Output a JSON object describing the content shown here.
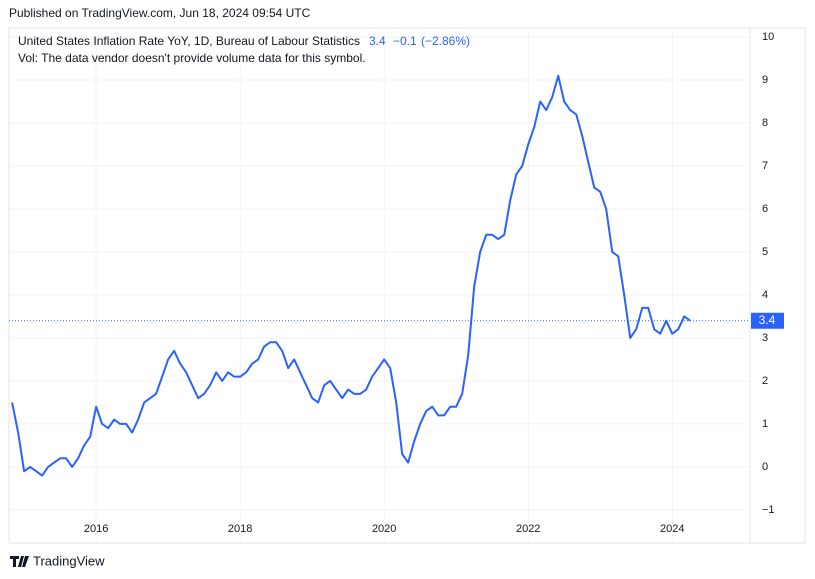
{
  "header": "Published on TradingView.com, Jun 18, 2024 09:54 UTC",
  "footer": "TradingView",
  "chart_data": {
    "type": "line",
    "title": "United States Inflation Rate YoY, 1D, Bureau of Labour Statistics",
    "legend_value": "3.4",
    "change": "−0.1",
    "change_pct": "(−2.86%)",
    "subtitle": "Vol: The data vendor doesn't provide volume data for this symbol.",
    "x": [
      2014.833,
      2014.917,
      2015.0,
      2015.083,
      2015.167,
      2015.25,
      2015.333,
      2015.417,
      2015.5,
      2015.583,
      2015.667,
      2015.75,
      2015.833,
      2015.917,
      2016.0,
      2016.083,
      2016.167,
      2016.25,
      2016.333,
      2016.417,
      2016.5,
      2016.583,
      2016.667,
      2016.75,
      2016.833,
      2016.917,
      2017.0,
      2017.083,
      2017.167,
      2017.25,
      2017.333,
      2017.417,
      2017.5,
      2017.583,
      2017.667,
      2017.75,
      2017.833,
      2017.917,
      2018.0,
      2018.083,
      2018.167,
      2018.25,
      2018.333,
      2018.417,
      2018.5,
      2018.583,
      2018.667,
      2018.75,
      2018.833,
      2018.917,
      2019.0,
      2019.083,
      2019.167,
      2019.25,
      2019.333,
      2019.417,
      2019.5,
      2019.583,
      2019.667,
      2019.75,
      2019.833,
      2019.917,
      2020.0,
      2020.083,
      2020.167,
      2020.25,
      2020.333,
      2020.417,
      2020.5,
      2020.583,
      2020.667,
      2020.75,
      2020.833,
      2020.917,
      2021.0,
      2021.083,
      2021.167,
      2021.25,
      2021.333,
      2021.417,
      2021.5,
      2021.583,
      2021.667,
      2021.75,
      2021.833,
      2021.917,
      2022.0,
      2022.083,
      2022.167,
      2022.25,
      2022.333,
      2022.417,
      2022.5,
      2022.583,
      2022.667,
      2022.75,
      2022.833,
      2022.917,
      2023.0,
      2023.083,
      2023.167,
      2023.25,
      2023.333,
      2023.417,
      2023.5,
      2023.583,
      2023.667,
      2023.75,
      2023.833,
      2023.917,
      2024.0,
      2024.083,
      2024.167,
      2024.25
    ],
    "series": [
      {
        "name": "United States Inflation Rate YoY",
        "color": "#2962ff",
        "values": [
          1.5,
          0.8,
          -0.1,
          0.0,
          -0.1,
          -0.2,
          0.0,
          0.1,
          0.2,
          0.2,
          0.0,
          0.2,
          0.5,
          0.7,
          1.4,
          1.0,
          0.9,
          1.1,
          1.0,
          1.0,
          0.8,
          1.1,
          1.5,
          1.6,
          1.7,
          2.1,
          2.5,
          2.7,
          2.4,
          2.2,
          1.9,
          1.6,
          1.7,
          1.9,
          2.2,
          2.0,
          2.2,
          2.1,
          2.1,
          2.2,
          2.4,
          2.5,
          2.8,
          2.9,
          2.9,
          2.7,
          2.3,
          2.5,
          2.2,
          1.9,
          1.6,
          1.5,
          1.9,
          2.0,
          1.8,
          1.6,
          1.8,
          1.7,
          1.7,
          1.8,
          2.1,
          2.3,
          2.5,
          2.3,
          1.5,
          0.3,
          0.1,
          0.6,
          1.0,
          1.3,
          1.4,
          1.2,
          1.2,
          1.4,
          1.4,
          1.7,
          2.6,
          4.2,
          5.0,
          5.4,
          5.4,
          5.3,
          5.4,
          6.2,
          6.8,
          7.0,
          7.5,
          7.9,
          8.5,
          8.3,
          8.6,
          9.1,
          8.5,
          8.3,
          8.2,
          7.7,
          7.1,
          6.5,
          6.4,
          6.0,
          5.0,
          4.9,
          4.0,
          3.0,
          3.2,
          3.7,
          3.7,
          3.2,
          3.1,
          3.4,
          3.1,
          3.2,
          3.5,
          3.4
        ]
      }
    ],
    "xlim": [
      2014.79,
      2025.08
    ],
    "xticks": [
      2016,
      2018,
      2020,
      2022,
      2024
    ],
    "ylim": [
      -1.77,
      10.21
    ],
    "yticks": [
      10,
      9,
      8,
      7,
      6,
      5,
      4,
      3,
      2,
      1,
      0,
      {
        "value": -1,
        "label": "−1"
      }
    ],
    "grid": true
  }
}
